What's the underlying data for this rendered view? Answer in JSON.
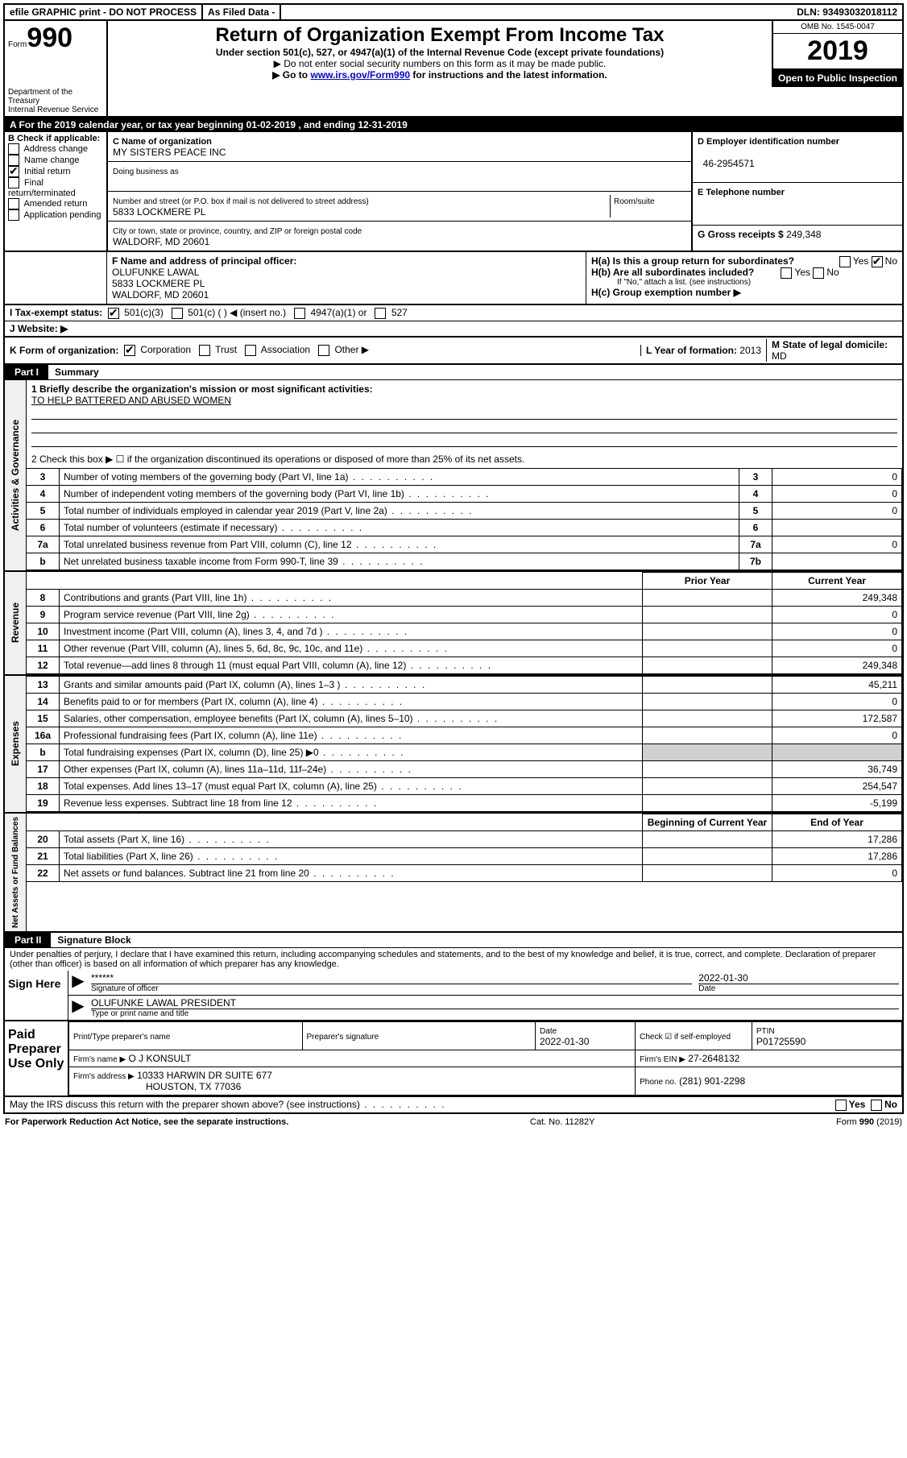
{
  "topbar": {
    "efile": "efile GRAPHIC print - DO NOT PROCESS",
    "asfiled": "As Filed Data -",
    "dln_label": "DLN:",
    "dln": "93493032018112"
  },
  "header": {
    "form_prefix": "Form",
    "form_no": "990",
    "title": "Return of Organization Exempt From Income Tax",
    "subtitle": "Under section 501(c), 527, or 4947(a)(1) of the Internal Revenue Code (except private foundations)",
    "note1": "▶ Do not enter social security numbers on this form as it may be made public.",
    "note2_pre": "▶ Go to ",
    "note2_link": "www.irs.gov/Form990",
    "note2_post": " for instructions and the latest information.",
    "omb": "OMB No. 1545-0047",
    "year": "2019",
    "inspect": "Open to Public Inspection",
    "dept": "Department of the Treasury\nInternal Revenue Service"
  },
  "row_a": "A   For the 2019 calendar year, or tax year beginning 01-02-2019    , and ending 12-31-2019",
  "section_b": {
    "b_label": "B Check if applicable:",
    "b_items": [
      "Address change",
      "Name change",
      "Initial return",
      "Final return/terminated",
      "Amended return",
      "Application pending"
    ],
    "b_checked_idx": 2,
    "c_label": "C Name of organization",
    "c_name": "MY SISTERS PEACE INC",
    "dba_label": "Doing business as",
    "addr_label": "Number and street (or P.O. box if mail is not delivered to street address)",
    "room_label": "Room/suite",
    "addr": "5833 LOCKMERE PL",
    "city_label": "City or town, state or province, country, and ZIP or foreign postal code",
    "city": "WALDORF, MD  20601",
    "d_label": "D Employer identification number",
    "ein": "46-2954571",
    "e_label": "E Telephone number",
    "g_label": "G Gross receipts $",
    "gross": "249,348"
  },
  "section_fh": {
    "f_label": "F  Name and address of principal officer:",
    "f_name": "OLUFUNKE LAWAL",
    "f_addr1": "5833 LOCKMERE PL",
    "f_addr2": "WALDORF, MD  20601",
    "ha_label": "H(a)  Is this a group return for subordinates?",
    "hb_label": "H(b)  Are all subordinates included?",
    "h_note": "If \"No,\" attach a list. (see instructions)",
    "hc_label": "H(c)  Group exemption number ▶",
    "yes": "Yes",
    "no": "No"
  },
  "row_i": {
    "label": "I   Tax-exempt status:",
    "opts": [
      "501(c)(3)",
      "501(c) (   ) ◀ (insert no.)",
      "4947(a)(1) or",
      "527"
    ],
    "checked_idx": 0
  },
  "row_j": "J   Website: ▶",
  "row_k": {
    "label": "K Form of organization:",
    "opts": [
      "Corporation",
      "Trust",
      "Association",
      "Other ▶"
    ],
    "checked_idx": 0,
    "l_label": "L Year of formation:",
    "l_val": "2013",
    "m_label": "M State of legal domicile:",
    "m_val": "MD"
  },
  "part1": {
    "tab": "Part I",
    "title": "Summary",
    "q1": "1 Briefly describe the organization's mission or most significant activities:",
    "q1_ans": "TO HELP BATTERED AND ABUSED WOMEN",
    "q2": "2   Check this box ▶ ☐  if the organization discontinued its operations or disposed of more than 25% of its net assets.",
    "governance_rows": [
      {
        "n": "3",
        "label": "Number of voting members of the governing body (Part VI, line 1a)",
        "box": "3",
        "val": "0"
      },
      {
        "n": "4",
        "label": "Number of independent voting members of the governing body (Part VI, line 1b)",
        "box": "4",
        "val": "0"
      },
      {
        "n": "5",
        "label": "Total number of individuals employed in calendar year 2019 (Part V, line 2a)",
        "box": "5",
        "val": "0"
      },
      {
        "n": "6",
        "label": "Total number of volunteers (estimate if necessary)",
        "box": "6",
        "val": ""
      },
      {
        "n": "7a",
        "label": "Total unrelated business revenue from Part VIII, column (C), line 12",
        "box": "7a",
        "val": "0"
      },
      {
        "n": "b",
        "label": "Net unrelated business taxable income from Form 990-T, line 39",
        "box": "7b",
        "val": ""
      }
    ],
    "col_prior": "Prior Year",
    "col_current": "Current Year",
    "revenue_rows": [
      {
        "n": "8",
        "label": "Contributions and grants (Part VIII, line 1h)",
        "prior": "",
        "cur": "249,348"
      },
      {
        "n": "9",
        "label": "Program service revenue (Part VIII, line 2g)",
        "prior": "",
        "cur": "0"
      },
      {
        "n": "10",
        "label": "Investment income (Part VIII, column (A), lines 3, 4, and 7d )",
        "prior": "",
        "cur": "0"
      },
      {
        "n": "11",
        "label": "Other revenue (Part VIII, column (A), lines 5, 6d, 8c, 9c, 10c, and 11e)",
        "prior": "",
        "cur": "0"
      },
      {
        "n": "12",
        "label": "Total revenue—add lines 8 through 11 (must equal Part VIII, column (A), line 12)",
        "prior": "",
        "cur": "249,348"
      }
    ],
    "expense_rows": [
      {
        "n": "13",
        "label": "Grants and similar amounts paid (Part IX, column (A), lines 1–3 )",
        "prior": "",
        "cur": "45,211"
      },
      {
        "n": "14",
        "label": "Benefits paid to or for members (Part IX, column (A), line 4)",
        "prior": "",
        "cur": "0"
      },
      {
        "n": "15",
        "label": "Salaries, other compensation, employee benefits (Part IX, column (A), lines 5–10)",
        "prior": "",
        "cur": "172,587"
      },
      {
        "n": "16a",
        "label": "Professional fundraising fees (Part IX, column (A), line 11e)",
        "prior": "",
        "cur": "0"
      },
      {
        "n": "b",
        "label": "Total fundraising expenses (Part IX, column (D), line 25) ▶0",
        "prior": "shade",
        "cur": "shade"
      },
      {
        "n": "17",
        "label": "Other expenses (Part IX, column (A), lines 11a–11d, 11f–24e)",
        "prior": "",
        "cur": "36,749"
      },
      {
        "n": "18",
        "label": "Total expenses. Add lines 13–17 (must equal Part IX, column (A), line 25)",
        "prior": "",
        "cur": "254,547"
      },
      {
        "n": "19",
        "label": "Revenue less expenses. Subtract line 18 from line 12",
        "prior": "",
        "cur": "-5,199"
      }
    ],
    "col_begin": "Beginning of Current Year",
    "col_end": "End of Year",
    "net_rows": [
      {
        "n": "20",
        "label": "Total assets (Part X, line 16)",
        "prior": "",
        "cur": "17,286"
      },
      {
        "n": "21",
        "label": "Total liabilities (Part X, line 26)",
        "prior": "",
        "cur": "17,286"
      },
      {
        "n": "22",
        "label": "Net assets or fund balances. Subtract line 21 from line 20",
        "prior": "",
        "cur": "0"
      }
    ],
    "vtab1": "Activities & Governance",
    "vtab2": "Revenue",
    "vtab3": "Expenses",
    "vtab4": "Net Assets or Fund Balances"
  },
  "part2": {
    "tab": "Part II",
    "title": "Signature Block",
    "perjury": "Under penalties of perjury, I declare that I have examined this return, including accompanying schedules and statements, and to the best of my knowledge and belief, it is true, correct, and complete. Declaration of preparer (other than officer) is based on all information of which preparer has any knowledge.",
    "sign_here": "Sign Here",
    "stars": "******",
    "sig_officer": "Signature of officer",
    "date_label": "Date",
    "sig_date": "2022-01-30",
    "name_title": "OLUFUNKE LAWAL PRESIDENT",
    "type_print": "Type or print name and title",
    "paid": "Paid Preparer Use Only",
    "prep_name_label": "Print/Type preparer's name",
    "prep_sig_label": "Preparer's signature",
    "prep_date": "2022-01-30",
    "check_self": "Check ☑ if self-employed",
    "ptin_label": "PTIN",
    "ptin": "P01725590",
    "firm_name_label": "Firm's name    ▶",
    "firm_name": "O J KONSULT",
    "firm_ein_label": "Firm's EIN ▶",
    "firm_ein": "27-2648132",
    "firm_addr_label": "Firm's address ▶",
    "firm_addr": "10333 HARWIN DR SUITE 677",
    "firm_city": "HOUSTON, TX  77036",
    "phone_label": "Phone no.",
    "phone": "(281) 901-2298",
    "discuss": "May the IRS discuss this return with the preparer shown above? (see instructions)"
  },
  "footer": {
    "left": "For Paperwork Reduction Act Notice, see the separate instructions.",
    "mid": "Cat. No. 11282Y",
    "right": "Form 990 (2019)"
  }
}
